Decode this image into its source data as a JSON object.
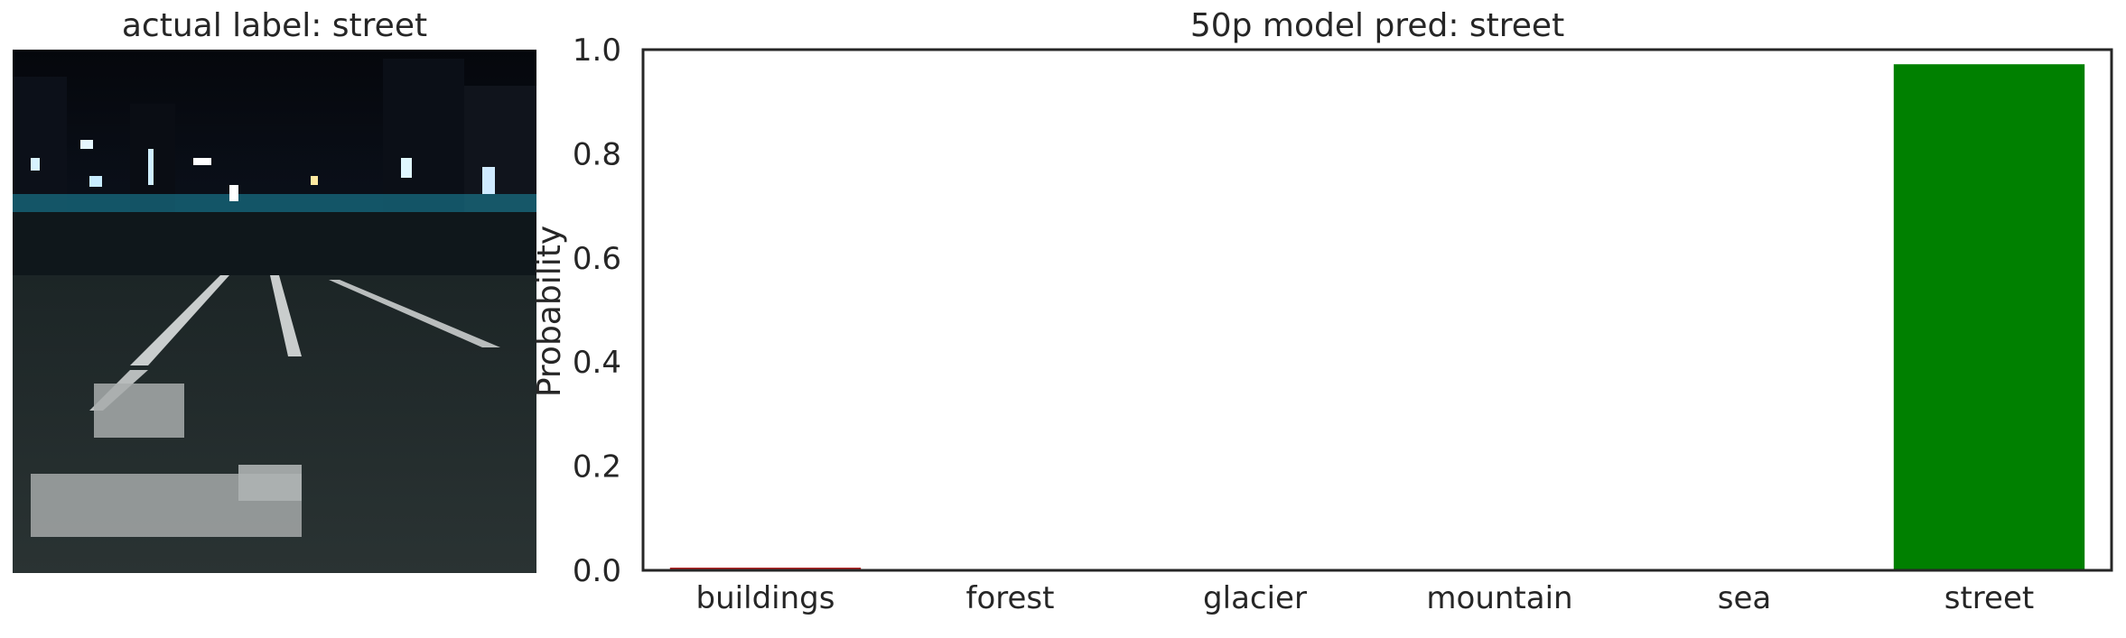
{
  "left_panel": {
    "title": "actual label: street"
  },
  "chart_data": {
    "type": "bar",
    "title": "50p model pred: street",
    "xlabel": "",
    "ylabel": "Probability",
    "categories": [
      "buildings",
      "forest",
      "glacier",
      "mountain",
      "sea",
      "street"
    ],
    "values": [
      0.004,
      0.0,
      0.0,
      0.0,
      0.0,
      0.972
    ],
    "bar_colors": [
      "#b22222",
      "#cccccc",
      "#cccccc",
      "#cccccc",
      "#cccccc",
      "#008000"
    ],
    "ylim": [
      0,
      1.0
    ],
    "yticks": [
      "0.0",
      "0.2",
      "0.4",
      "0.6",
      "0.8",
      "1.0"
    ],
    "grid": false
  }
}
